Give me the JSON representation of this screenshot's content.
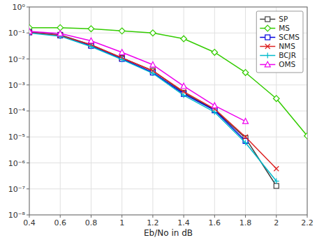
{
  "chart_data": {
    "type": "line",
    "xlabel": "Eb/No in dB",
    "x": [
      0.4,
      0.6,
      0.8,
      1.0,
      1.2,
      1.4,
      1.6,
      1.8,
      2.0,
      2.2
    ],
    "series": [
      {
        "name": "SP",
        "color": "#404040",
        "marker": "square",
        "values": [
          0.11,
          0.085,
          0.035,
          0.011,
          0.0035,
          0.0005,
          0.00011,
          9e-06,
          1.3e-07,
          null
        ]
      },
      {
        "name": "MS",
        "color": "#33cc00",
        "marker": "diamond",
        "values": [
          0.16,
          0.16,
          0.145,
          0.12,
          0.1,
          0.06,
          0.018,
          0.003,
          0.0003,
          1.1e-05
        ]
      },
      {
        "name": "SCMS",
        "color": "#0000dd",
        "marker": "square",
        "values": [
          0.105,
          0.08,
          0.032,
          0.01,
          0.003,
          0.00045,
          0.000105,
          7e-06,
          null,
          null
        ]
      },
      {
        "name": "NMS",
        "color": "#dd2222",
        "marker": "x",
        "values": [
          0.105,
          0.08,
          0.035,
          0.011,
          0.0035,
          0.00055,
          0.00012,
          1e-05,
          6e-07,
          null
        ]
      },
      {
        "name": "BCJR",
        "color": "#00bbcc",
        "marker": "plus",
        "values": [
          0.1,
          0.075,
          0.03,
          0.0095,
          0.0028,
          0.0004,
          9e-05,
          6e-06,
          2e-07,
          null
        ]
      },
      {
        "name": "OMS",
        "color": "#ee00ee",
        "marker": "triangle",
        "values": [
          0.115,
          0.095,
          0.05,
          0.018,
          0.006,
          0.0009,
          0.00016,
          4e-05,
          null,
          null
        ]
      }
    ],
    "xlim": [
      0.4,
      2.2
    ],
    "xticks": [
      0.4,
      0.6,
      0.8,
      1,
      1.2,
      1.4,
      1.6,
      1.8,
      2,
      2.2
    ],
    "ylim": [
      1e-08,
      1
    ],
    "yticks": [
      {
        "value": 1e-08,
        "label": "10⁻⁸"
      },
      {
        "value": 1e-07,
        "label": "10⁻⁷"
      },
      {
        "value": 1e-06,
        "label": "10⁻⁶"
      },
      {
        "value": 1e-05,
        "label": "10⁻⁵"
      },
      {
        "value": 0.0001,
        "label": "10⁻⁴"
      },
      {
        "value": 0.001,
        "label": "10⁻³"
      },
      {
        "value": 0.01,
        "label": "10⁻²"
      },
      {
        "value": 0.1,
        "label": "10⁻¹"
      },
      {
        "value": 1,
        "label": "10⁰"
      }
    ],
    "log": "y",
    "grid": true,
    "legend": "upper right"
  }
}
